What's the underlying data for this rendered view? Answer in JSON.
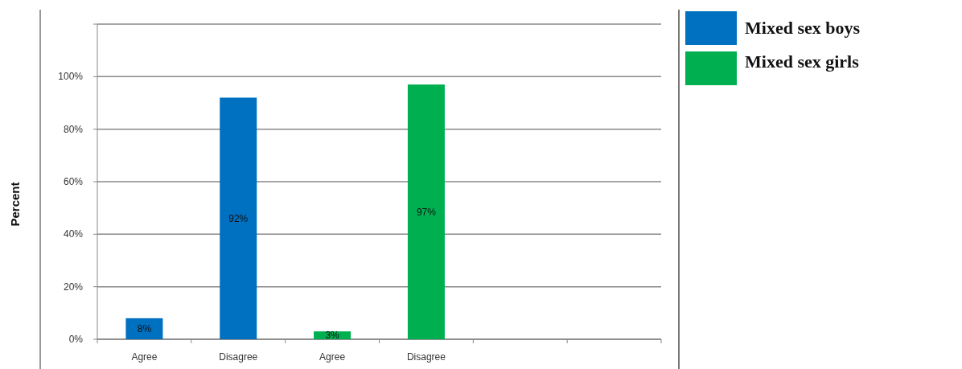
{
  "chart_data": {
    "type": "bar",
    "ylabel": "Percent",
    "categories": [
      "Agree",
      "Disagree",
      "Agree",
      "Disagree",
      null,
      null
    ],
    "series": [
      {
        "name": "Mixed sex boys",
        "color": "#0070c0",
        "values": [
          8,
          92,
          null,
          null,
          null,
          null
        ],
        "value_labels": [
          "8%",
          "92%",
          null,
          null,
          null,
          null
        ]
      },
      {
        "name": "Mixed sex girls",
        "color": "#00b050",
        "values": [
          null,
          null,
          3,
          97,
          null,
          null
        ],
        "value_labels": [
          null,
          null,
          "3%",
          "97%",
          null,
          null
        ]
      }
    ],
    "ylim": [
      0,
      120
    ],
    "yticks": [
      {
        "value": 0,
        "label": "0%"
      },
      {
        "value": 20,
        "label": "20%"
      },
      {
        "value": 40,
        "label": "40%"
      },
      {
        "value": 60,
        "label": "60%"
      },
      {
        "value": 80,
        "label": "80%"
      },
      {
        "value": 100,
        "label": "100%"
      },
      {
        "value": 120,
        "label": null
      }
    ],
    "grid": "y",
    "legend": "right"
  }
}
